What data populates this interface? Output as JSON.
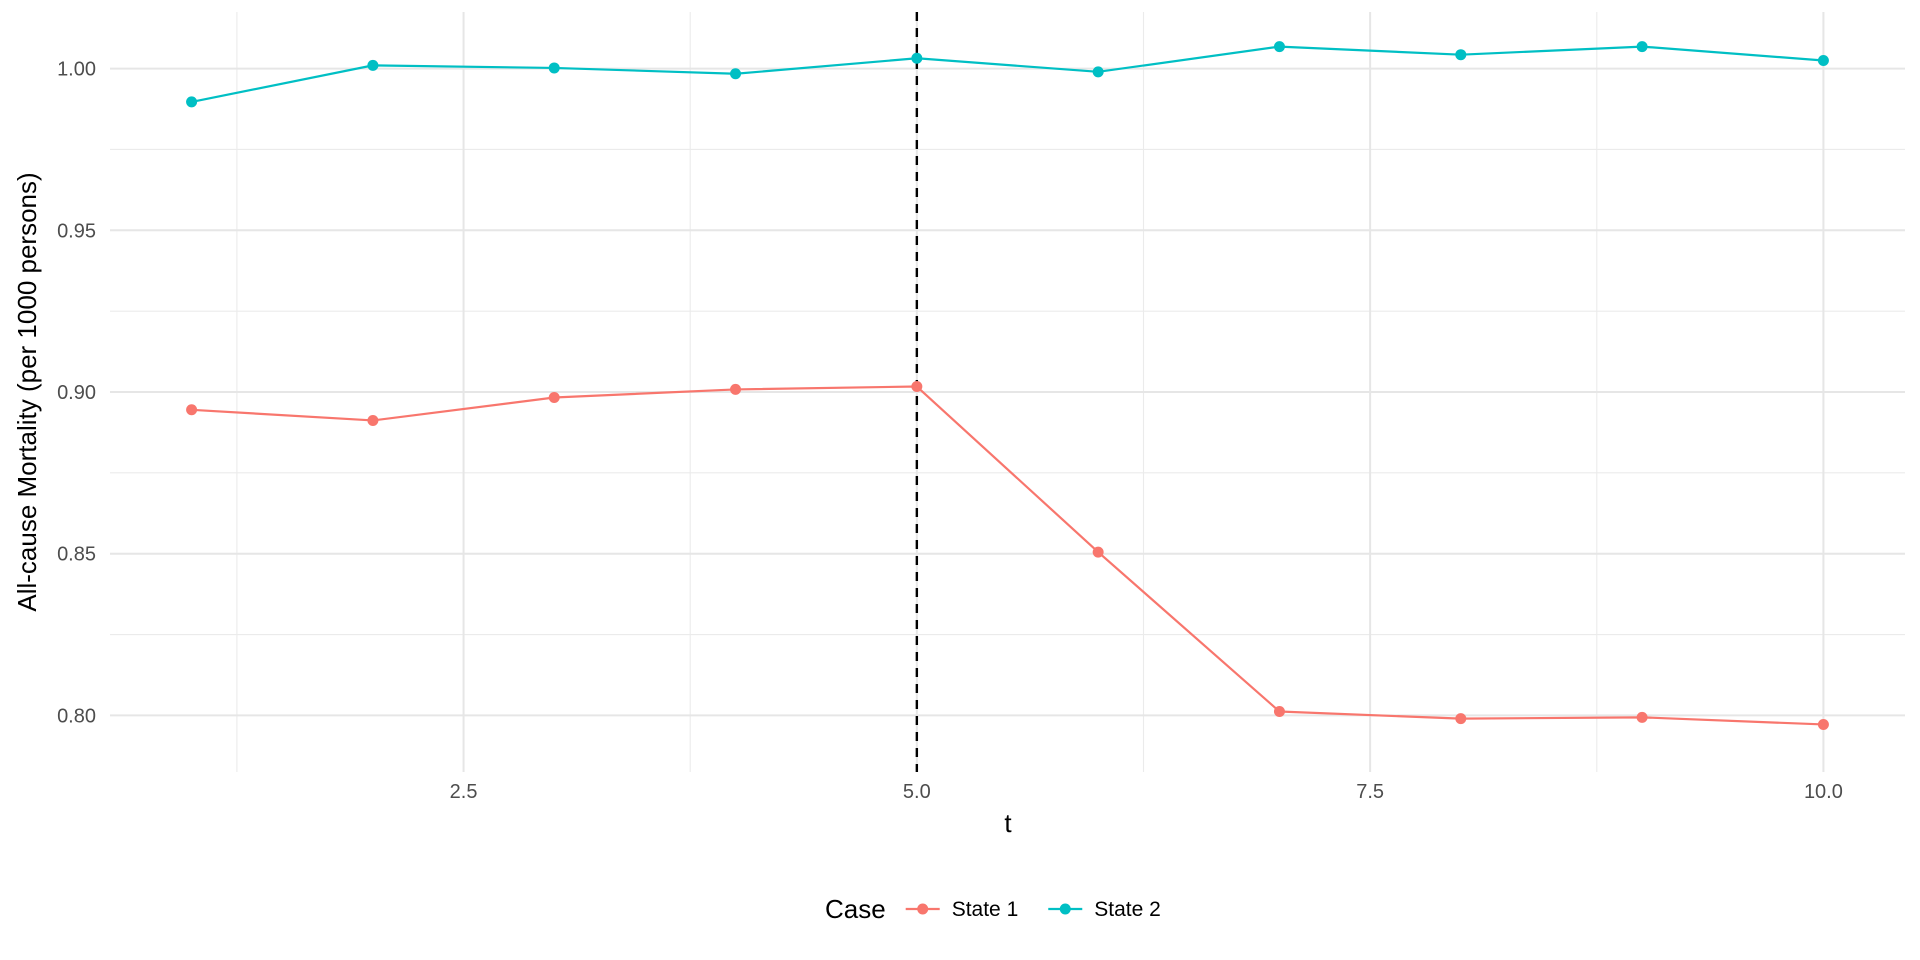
{
  "chart_data": {
    "type": "line",
    "title": "",
    "xlabel": "t",
    "ylabel": "All-cause Mortality (per 1000 persons)",
    "xlim": [
      0.55,
      10.45
    ],
    "ylim": [
      0.7825,
      1.0175
    ],
    "x_ticks": [
      2.5,
      5.0,
      7.5,
      10.0
    ],
    "x_tick_labels": [
      "2.5",
      "5.0",
      "7.5",
      "10.0"
    ],
    "y_ticks": [
      0.8,
      0.85,
      0.9,
      0.95,
      1.0
    ],
    "y_tick_labels": [
      "0.80",
      "0.85",
      "0.90",
      "0.95",
      "1.00"
    ],
    "grid": true,
    "legend": {
      "title": "Case",
      "placement": "bottom"
    },
    "vline": {
      "x": 5,
      "style": "dashed",
      "color": "#000000"
    },
    "x": [
      1,
      2,
      3,
      4,
      5,
      6,
      7,
      8,
      9,
      10
    ],
    "series": [
      {
        "name": "State 1",
        "color": "#F8766D",
        "values": [
          0.8945,
          0.8912,
          0.8983,
          0.9008,
          0.9017,
          0.8505,
          0.8012,
          0.799,
          0.7994,
          0.7972
        ]
      },
      {
        "name": "State 2",
        "color": "#00BFC4",
        "values": [
          0.9897,
          1.001,
          1.0002,
          0.9984,
          1.0032,
          0.999,
          1.0068,
          1.0043,
          1.0068,
          1.0025
        ]
      }
    ]
  }
}
